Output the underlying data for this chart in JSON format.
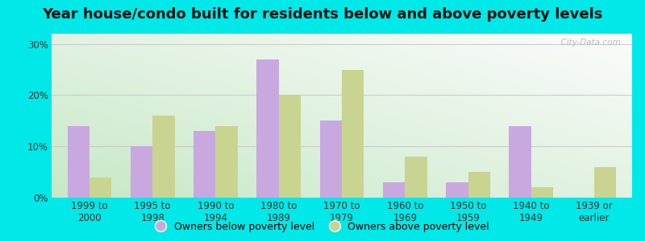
{
  "title": "Year house/condo built for residents below and above poverty levels",
  "categories": [
    "1999 to\n2000",
    "1995 to\n1998",
    "1990 to\n1994",
    "1980 to\n1989",
    "1970 to\n1979",
    "1960 to\n1969",
    "1950 to\n1959",
    "1940 to\n1949",
    "1939 or\nearlier"
  ],
  "below_poverty": [
    14,
    10,
    13,
    27,
    15,
    3,
    3,
    14,
    0
  ],
  "above_poverty": [
    4,
    16,
    14,
    20,
    25,
    8,
    5,
    2,
    6
  ],
  "below_color": "#c9a8e0",
  "above_color": "#c8d490",
  "background_outer": "#00e8e8",
  "ylim": [
    0,
    32
  ],
  "yticks": [
    0,
    10,
    20,
    30
  ],
  "ytick_labels": [
    "0%",
    "10%",
    "20%",
    "30%"
  ],
  "bar_width": 0.35,
  "title_fontsize": 13,
  "tick_fontsize": 8.5,
  "legend_fontsize": 9,
  "watermark": "  City-Data.com"
}
